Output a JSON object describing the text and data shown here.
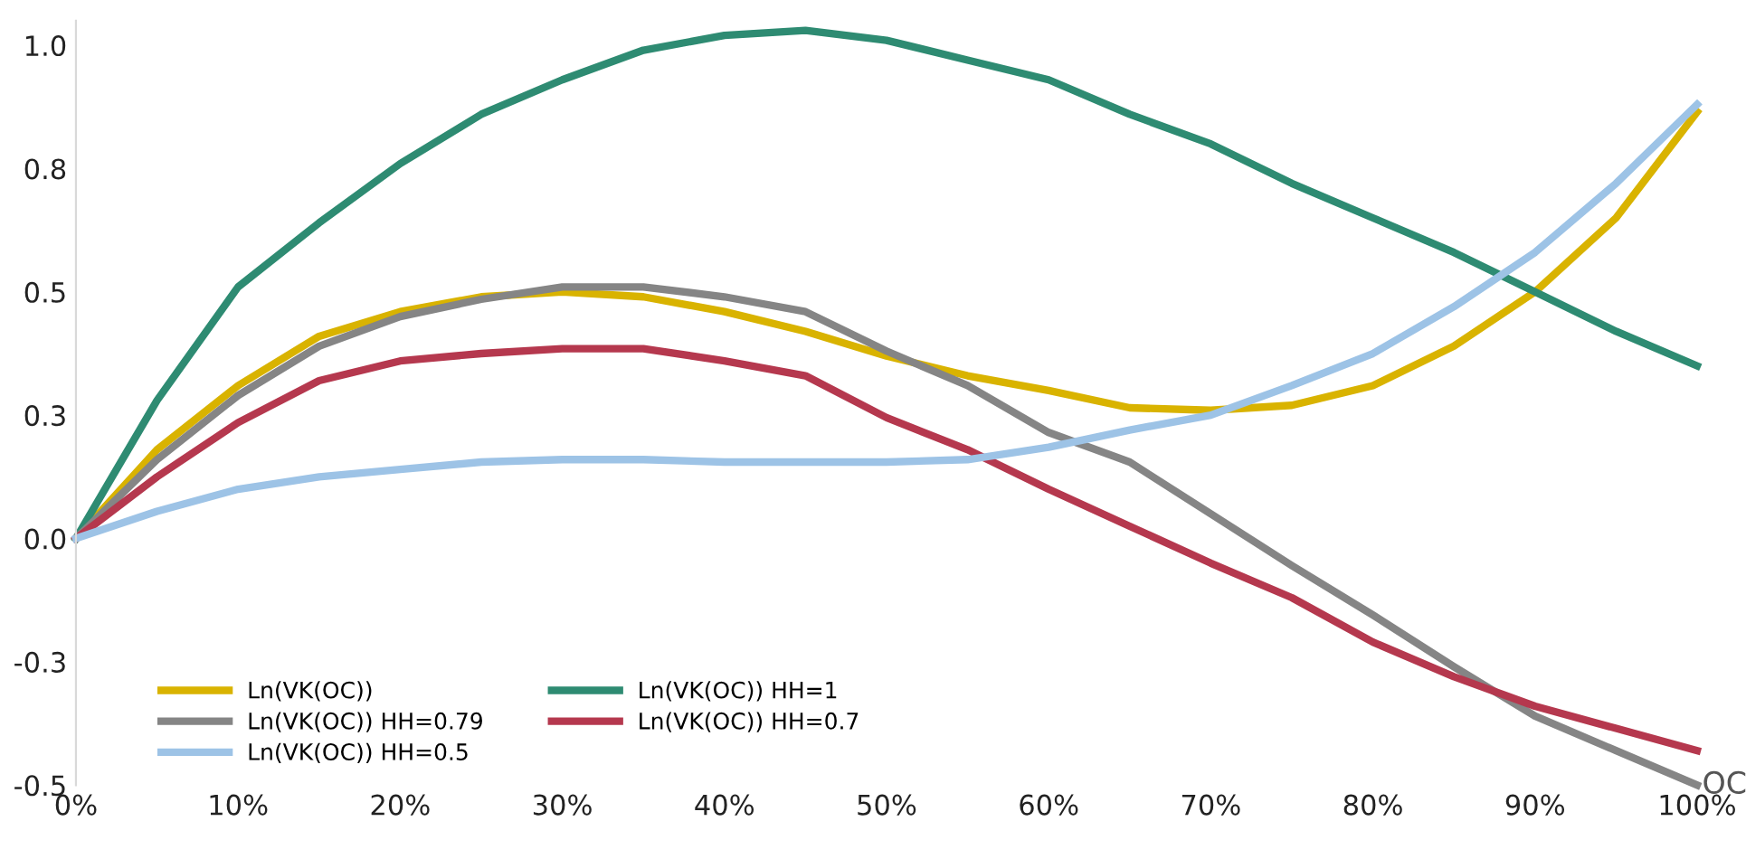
{
  "chart_data": {
    "type": "line",
    "x": [
      0,
      5,
      10,
      15,
      20,
      25,
      30,
      35,
      40,
      45,
      50,
      55,
      60,
      65,
      70,
      75,
      80,
      85,
      90,
      95,
      100
    ],
    "series": [
      {
        "name": "Ln(VK(OC))",
        "color": "#d9b300",
        "values": [
          0,
          0.18,
          0.31,
          0.41,
          0.46,
          0.49,
          0.5,
          0.49,
          0.46,
          0.42,
          0.37,
          0.33,
          0.3,
          0.265,
          0.26,
          0.27,
          0.31,
          0.39,
          0.5,
          0.65,
          0.865
        ]
      },
      {
        "name": "Ln(VK(OC)) HH=1",
        "color": "#2e8b72",
        "values": [
          0,
          0.28,
          0.51,
          0.64,
          0.76,
          0.86,
          0.93,
          0.99,
          1.02,
          1.03,
          1.01,
          0.97,
          0.93,
          0.86,
          0.8,
          0.72,
          0.65,
          0.58,
          0.5,
          0.42,
          0.35
        ]
      },
      {
        "name": "Ln(VK(OC)) HH=0.79",
        "color": "#858585",
        "values": [
          0,
          0.16,
          0.29,
          0.39,
          0.45,
          0.485,
          0.51,
          0.51,
          0.49,
          0.46,
          0.38,
          0.31,
          0.215,
          0.155,
          0.05,
          -0.055,
          -0.155,
          -0.26,
          -0.36,
          -0.43,
          -0.5
        ]
      },
      {
        "name": "Ln(VK(OC)) HH=0.7",
        "color": "#b5384e",
        "values": [
          0,
          0.125,
          0.235,
          0.32,
          0.36,
          0.375,
          0.385,
          0.385,
          0.36,
          0.33,
          0.245,
          0.18,
          0.1,
          0.025,
          -0.05,
          -0.12,
          -0.21,
          -0.28,
          -0.34,
          -0.385,
          -0.43
        ]
      },
      {
        "name": "Ln(VK(OC)) HH=0.5",
        "color": "#9dc3e6",
        "values": [
          0,
          0.055,
          0.1,
          0.125,
          0.14,
          0.155,
          0.16,
          0.16,
          0.155,
          0.155,
          0.155,
          0.16,
          0.185,
          0.22,
          0.25,
          0.31,
          0.375,
          0.47,
          0.58,
          0.72,
          0.88
        ]
      }
    ],
    "xlim": [
      0,
      100
    ],
    "xticks": [
      {
        "value": 0,
        "label": "0%"
      },
      {
        "value": 10,
        "label": "10%"
      },
      {
        "value": 20,
        "label": "20%"
      },
      {
        "value": 30,
        "label": "30%"
      },
      {
        "value": 40,
        "label": "40%"
      },
      {
        "value": 50,
        "label": "50%"
      },
      {
        "value": 60,
        "label": "60%"
      },
      {
        "value": 70,
        "label": "70%"
      },
      {
        "value": 80,
        "label": "80%"
      },
      {
        "value": 90,
        "label": "90%"
      },
      {
        "value": 100,
        "label": "100%"
      }
    ],
    "ylim": [
      -0.5,
      1.05
    ],
    "yticks": [
      {
        "value": -0.5,
        "label": "-0.5"
      },
      {
        "value": -0.25,
        "label": "-0.3"
      },
      {
        "value": 0,
        "label": "0.0"
      },
      {
        "value": 0.25,
        "label": "0.3"
      },
      {
        "value": 0.5,
        "label": "0.5"
      },
      {
        "value": 0.75,
        "label": "0.8"
      },
      {
        "value": 1.0,
        "label": "1.0"
      }
    ],
    "annotations": [
      {
        "text": "OC",
        "x": 100,
        "y": -0.5
      }
    ],
    "legend": "bottom left",
    "grid": false,
    "marker": "none",
    "line_style": "solid"
  }
}
